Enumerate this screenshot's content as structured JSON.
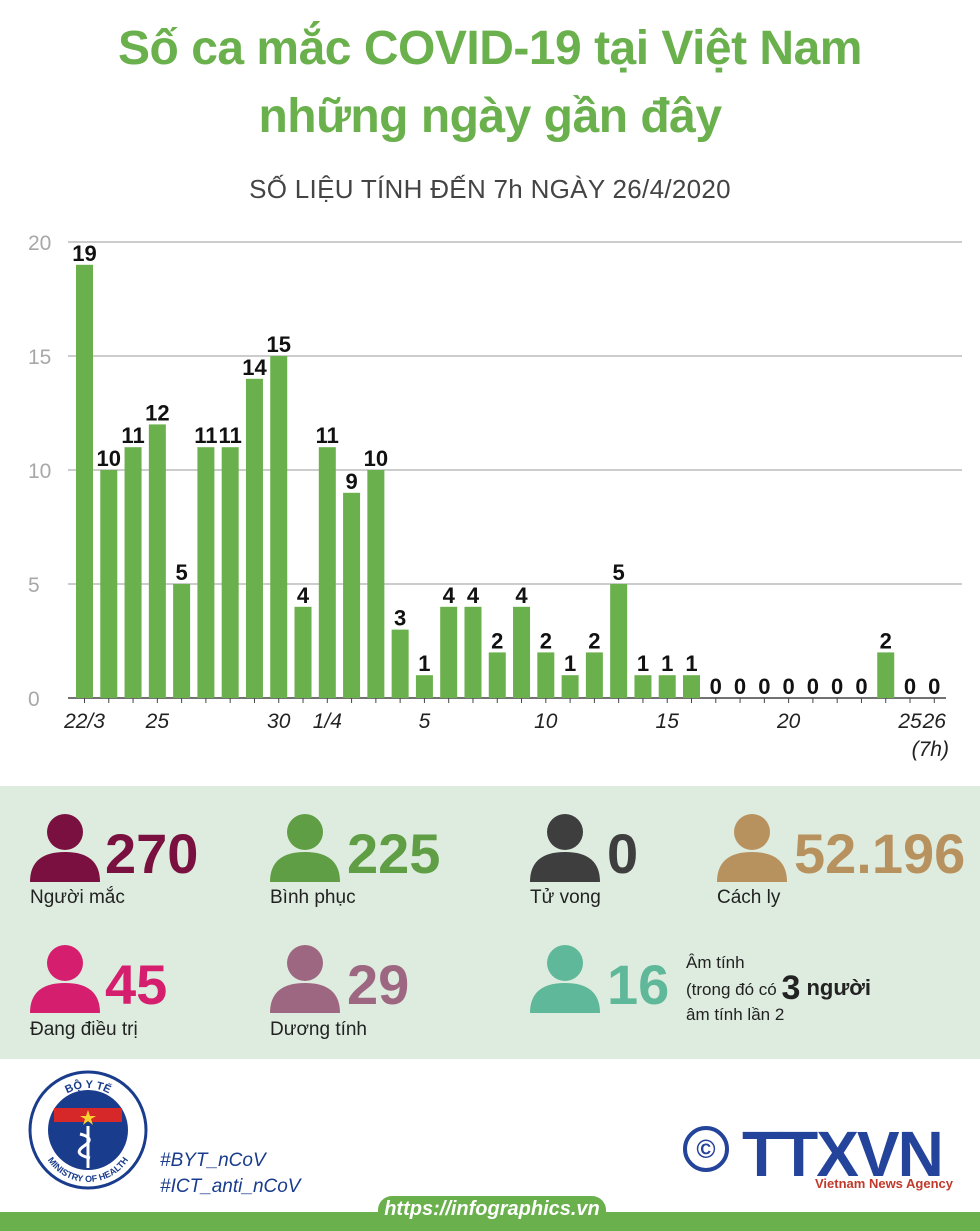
{
  "title_line1": "Số ca mắc COVID-19 tại Việt Nam",
  "title_line2": "những ngày gần đây",
  "subtitle": "SỐ LIỆU TÍNH ĐẾN 7h NGÀY 26/4/2020",
  "chart_data": {
    "type": "bar",
    "categories": [
      "22/3",
      "23/3",
      "24/3",
      "25/3",
      "26/3",
      "27/3",
      "28/3",
      "29/3",
      "30/3",
      "31/3",
      "1/4",
      "2/4",
      "3/4",
      "4/4",
      "5/4",
      "6/4",
      "7/4",
      "8/4",
      "9/4",
      "10/4",
      "11/4",
      "12/4",
      "13/4",
      "14/4",
      "15/4",
      "16/4",
      "17/4",
      "18/4",
      "19/4",
      "20/4",
      "21/4",
      "22/4",
      "23/4",
      "24/4",
      "25/4",
      "26/4 (7h)"
    ],
    "values": [
      19,
      10,
      11,
      12,
      5,
      11,
      11,
      14,
      15,
      4,
      11,
      9,
      10,
      3,
      1,
      4,
      4,
      2,
      4,
      2,
      1,
      2,
      5,
      1,
      1,
      1,
      0,
      0,
      0,
      0,
      0,
      0,
      0,
      2,
      0,
      0
    ],
    "ylim": [
      0,
      20
    ],
    "yticks": [
      0,
      5,
      10,
      15,
      20
    ],
    "xtick_labels": [
      {
        "index": 0,
        "label": "22/3"
      },
      {
        "index": 3,
        "label": "25"
      },
      {
        "index": 8,
        "label": "30"
      },
      {
        "index": 10,
        "label": "1/4"
      },
      {
        "index": 14,
        "label": "5"
      },
      {
        "index": 19,
        "label": "10"
      },
      {
        "index": 24,
        "label": "15"
      },
      {
        "index": 29,
        "label": "20"
      },
      {
        "index": 34,
        "label": "25"
      },
      {
        "index": 35,
        "label": "26"
      }
    ],
    "last_note": "(7h)",
    "grid": true,
    "bar_color": "#6ab04c"
  },
  "stats": {
    "infected": {
      "value": "270",
      "label": "Người mắc",
      "color": "#7a1040"
    },
    "recovered": {
      "value": "225",
      "label": "Bình phục",
      "color": "#5f9e44"
    },
    "deaths": {
      "value": "0",
      "label": "Tử vong",
      "color": "#3e3e3e"
    },
    "quarantine": {
      "value": "52.196",
      "label": "Cách ly",
      "color": "#b8925e"
    },
    "treating": {
      "value": "45",
      "label": "Đang điều trị",
      "color": "#d51e6e"
    },
    "positive": {
      "value": "29",
      "label": "Dương tính",
      "color": "#9e6781"
    },
    "negative": {
      "value": "16",
      "color": "#5fb89a",
      "label_line1": "Âm tính",
      "label_line2_a": "(trong đó có ",
      "label_line2_num": "3",
      "label_line2_b": " người",
      "label_line3": "âm tính lần 2"
    }
  },
  "footer": {
    "ministry_top": "BỘ Y TẾ",
    "ministry_bottom": "MINISTRY OF HEALTH",
    "tag1": "#BYT_nCoV",
    "tag2": "#ICT_anti_nCoV",
    "copyright": "©",
    "agency": "TTXVN",
    "agency_sub": "Vietnam News Agency",
    "url": "https://infographics.vn"
  }
}
